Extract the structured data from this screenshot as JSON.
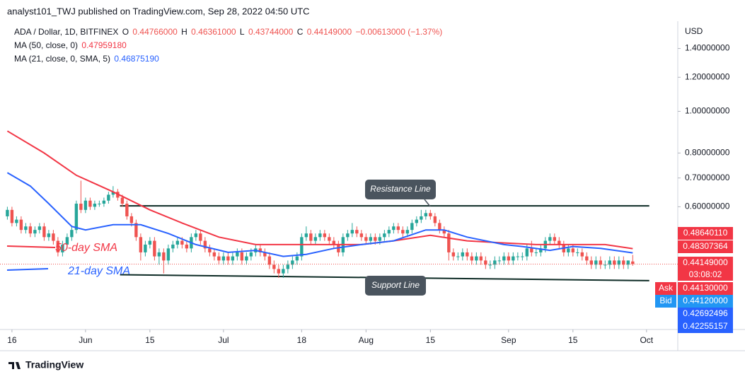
{
  "header": {
    "publisher": "analyst101_TWJ published on TradingView.com, Sep 28, 2022 04:50 UTC",
    "brand": "TradingView"
  },
  "chart_data": {
    "type": "candlestick",
    "symbol": "ADA / Dollar, 1D, BITFINEX",
    "ohlc_legend": [
      {
        "key": "O",
        "text": "0.44766000"
      },
      {
        "key": "H",
        "text": "0.46361000"
      },
      {
        "key": "L",
        "text": "0.43744000"
      },
      {
        "key": "C",
        "text": "0.44149000"
      }
    ],
    "change": "−0.00613000 (−1.37%)",
    "currency": "USD",
    "up_color": "#26a69a",
    "down_color": "#ef5350",
    "log_scale": true,
    "ylim": [
      0.311,
      1.62
    ],
    "yticks": [
      {
        "value": 1.4,
        "label": "1.40000000"
      },
      {
        "value": 1.2,
        "label": "1.20000000"
      },
      {
        "value": 1.0,
        "label": "1.00000000"
      },
      {
        "value": 0.8,
        "label": "0.80000000"
      },
      {
        "value": 0.7,
        "label": "0.70000000"
      },
      {
        "value": 0.6,
        "label": "0.60000000"
      }
    ],
    "xlim": [
      -1.6,
      145.8
    ],
    "xticks": [
      {
        "value": 1,
        "label": "16"
      },
      {
        "value": 17,
        "label": "Jun"
      },
      {
        "value": 31,
        "label": "15"
      },
      {
        "value": 47,
        "label": "Jul"
      },
      {
        "value": 64,
        "label": "18"
      },
      {
        "value": 78,
        "label": "Aug"
      },
      {
        "value": 92,
        "label": "15"
      },
      {
        "value": 109,
        "label": "Sep"
      },
      {
        "value": 123,
        "label": "15"
      },
      {
        "value": 139,
        "label": "Oct"
      }
    ],
    "candles": [
      [
        0.57,
        0.6,
        0.56,
        0.59
      ],
      [
        0.59,
        0.6,
        0.54,
        0.55
      ],
      [
        0.55,
        0.57,
        0.54,
        0.56
      ],
      [
        0.56,
        0.57,
        0.52,
        0.53
      ],
      [
        0.53,
        0.55,
        0.52,
        0.54
      ],
      [
        0.54,
        0.55,
        0.51,
        0.52
      ],
      [
        0.52,
        0.54,
        0.51,
        0.53
      ],
      [
        0.53,
        0.55,
        0.52,
        0.54
      ],
      [
        0.54,
        0.55,
        0.5,
        0.51
      ],
      [
        0.51,
        0.53,
        0.5,
        0.52
      ],
      [
        0.52,
        0.53,
        0.49,
        0.5
      ],
      [
        0.5,
        0.51,
        0.46,
        0.47
      ],
      [
        0.47,
        0.5,
        0.46,
        0.49
      ],
      [
        0.49,
        0.52,
        0.48,
        0.51
      ],
      [
        0.51,
        0.54,
        0.5,
        0.53
      ],
      [
        0.53,
        0.62,
        0.52,
        0.61
      ],
      [
        0.61,
        0.69,
        0.58,
        0.59
      ],
      [
        0.59,
        0.63,
        0.58,
        0.62
      ],
      [
        0.62,
        0.63,
        0.59,
        0.6
      ],
      [
        0.6,
        0.62,
        0.59,
        0.61
      ],
      [
        0.61,
        0.62,
        0.6,
        0.61
      ],
      [
        0.61,
        0.63,
        0.6,
        0.62
      ],
      [
        0.62,
        0.65,
        0.61,
        0.64
      ],
      [
        0.64,
        0.67,
        0.63,
        0.65
      ],
      [
        0.65,
        0.66,
        0.62,
        0.63
      ],
      [
        0.63,
        0.64,
        0.6,
        0.61
      ],
      [
        0.61,
        0.62,
        0.56,
        0.57
      ],
      [
        0.57,
        0.58,
        0.54,
        0.55
      ],
      [
        0.55,
        0.56,
        0.5,
        0.51
      ],
      [
        0.51,
        0.52,
        0.45,
        0.47
      ],
      [
        0.47,
        0.5,
        0.46,
        0.49
      ],
      [
        0.49,
        0.51,
        0.48,
        0.5
      ],
      [
        0.5,
        0.51,
        0.45,
        0.46
      ],
      [
        0.46,
        0.48,
        0.44,
        0.47
      ],
      [
        0.47,
        0.48,
        0.42,
        0.45
      ],
      [
        0.45,
        0.49,
        0.44,
        0.48
      ],
      [
        0.48,
        0.5,
        0.47,
        0.49
      ],
      [
        0.49,
        0.51,
        0.48,
        0.5
      ],
      [
        0.5,
        0.51,
        0.48,
        0.49
      ],
      [
        0.49,
        0.5,
        0.47,
        0.48
      ],
      [
        0.48,
        0.52,
        0.47,
        0.51
      ],
      [
        0.51,
        0.53,
        0.5,
        0.52
      ],
      [
        0.52,
        0.53,
        0.49,
        0.5
      ],
      [
        0.5,
        0.51,
        0.47,
        0.48
      ],
      [
        0.48,
        0.49,
        0.46,
        0.47
      ],
      [
        0.47,
        0.48,
        0.45,
        0.46
      ],
      [
        0.46,
        0.47,
        0.44,
        0.45
      ],
      [
        0.45,
        0.47,
        0.44,
        0.46
      ],
      [
        0.46,
        0.47,
        0.44,
        0.45
      ],
      [
        0.45,
        0.47,
        0.44,
        0.46
      ],
      [
        0.46,
        0.48,
        0.45,
        0.47
      ],
      [
        0.47,
        0.48,
        0.44,
        0.45
      ],
      [
        0.45,
        0.47,
        0.44,
        0.46
      ],
      [
        0.46,
        0.48,
        0.45,
        0.47
      ],
      [
        0.47,
        0.49,
        0.46,
        0.48
      ],
      [
        0.48,
        0.49,
        0.46,
        0.47
      ],
      [
        0.47,
        0.48,
        0.45,
        0.46
      ],
      [
        0.46,
        0.47,
        0.43,
        0.44
      ],
      [
        0.44,
        0.45,
        0.42,
        0.43
      ],
      [
        0.43,
        0.44,
        0.41,
        0.42
      ],
      [
        0.42,
        0.44,
        0.41,
        0.43
      ],
      [
        0.43,
        0.45,
        0.42,
        0.44
      ],
      [
        0.44,
        0.46,
        0.43,
        0.45
      ],
      [
        0.45,
        0.47,
        0.44,
        0.46
      ],
      [
        0.46,
        0.52,
        0.45,
        0.51
      ],
      [
        0.51,
        0.54,
        0.5,
        0.52
      ],
      [
        0.52,
        0.53,
        0.49,
        0.5
      ],
      [
        0.5,
        0.52,
        0.49,
        0.51
      ],
      [
        0.51,
        0.53,
        0.5,
        0.52
      ],
      [
        0.52,
        0.53,
        0.5,
        0.51
      ],
      [
        0.51,
        0.52,
        0.49,
        0.5
      ],
      [
        0.5,
        0.51,
        0.48,
        0.49
      ],
      [
        0.49,
        0.5,
        0.46,
        0.47
      ],
      [
        0.47,
        0.52,
        0.46,
        0.51
      ],
      [
        0.51,
        0.53,
        0.5,
        0.52
      ],
      [
        0.52,
        0.55,
        0.51,
        0.53
      ],
      [
        0.53,
        0.54,
        0.51,
        0.52
      ],
      [
        0.52,
        0.53,
        0.5,
        0.51
      ],
      [
        0.51,
        0.52,
        0.49,
        0.5
      ],
      [
        0.5,
        0.52,
        0.49,
        0.51
      ],
      [
        0.51,
        0.52,
        0.49,
        0.5
      ],
      [
        0.5,
        0.52,
        0.49,
        0.51
      ],
      [
        0.51,
        0.53,
        0.5,
        0.52
      ],
      [
        0.52,
        0.54,
        0.51,
        0.53
      ],
      [
        0.53,
        0.55,
        0.52,
        0.54
      ],
      [
        0.54,
        0.55,
        0.52,
        0.53
      ],
      [
        0.53,
        0.54,
        0.51,
        0.52
      ],
      [
        0.52,
        0.54,
        0.51,
        0.53
      ],
      [
        0.53,
        0.56,
        0.52,
        0.55
      ],
      [
        0.55,
        0.57,
        0.54,
        0.56
      ],
      [
        0.56,
        0.59,
        0.55,
        0.57
      ],
      [
        0.57,
        0.59,
        0.56,
        0.58
      ],
      [
        0.58,
        0.59,
        0.56,
        0.57
      ],
      [
        0.57,
        0.58,
        0.54,
        0.55
      ],
      [
        0.55,
        0.56,
        0.52,
        0.53
      ],
      [
        0.53,
        0.54,
        0.51,
        0.52
      ],
      [
        0.52,
        0.53,
        0.45,
        0.47
      ],
      [
        0.47,
        0.48,
        0.45,
        0.46
      ],
      [
        0.46,
        0.47,
        0.45,
        0.46
      ],
      [
        0.46,
        0.48,
        0.45,
        0.47
      ],
      [
        0.47,
        0.48,
        0.45,
        0.46
      ],
      [
        0.46,
        0.47,
        0.44,
        0.45
      ],
      [
        0.45,
        0.47,
        0.44,
        0.46
      ],
      [
        0.46,
        0.47,
        0.44,
        0.45
      ],
      [
        0.45,
        0.46,
        0.43,
        0.44
      ],
      [
        0.44,
        0.45,
        0.43,
        0.44
      ],
      [
        0.44,
        0.46,
        0.43,
        0.45
      ],
      [
        0.45,
        0.46,
        0.44,
        0.45
      ],
      [
        0.45,
        0.47,
        0.44,
        0.46
      ],
      [
        0.46,
        0.47,
        0.44,
        0.45
      ],
      [
        0.45,
        0.47,
        0.44,
        0.46
      ],
      [
        0.46,
        0.47,
        0.45,
        0.46
      ],
      [
        0.46,
        0.47,
        0.45,
        0.46
      ],
      [
        0.46,
        0.49,
        0.45,
        0.48
      ],
      [
        0.48,
        0.5,
        0.46,
        0.47
      ],
      [
        0.47,
        0.48,
        0.46,
        0.47
      ],
      [
        0.47,
        0.49,
        0.46,
        0.48
      ],
      [
        0.48,
        0.51,
        0.47,
        0.5
      ],
      [
        0.5,
        0.52,
        0.49,
        0.51
      ],
      [
        0.51,
        0.52,
        0.49,
        0.5
      ],
      [
        0.5,
        0.51,
        0.48,
        0.49
      ],
      [
        0.49,
        0.5,
        0.46,
        0.47
      ],
      [
        0.47,
        0.49,
        0.46,
        0.48
      ],
      [
        0.48,
        0.49,
        0.46,
        0.47
      ],
      [
        0.47,
        0.48,
        0.46,
        0.47
      ],
      [
        0.47,
        0.48,
        0.45,
        0.46
      ],
      [
        0.46,
        0.47,
        0.44,
        0.45
      ],
      [
        0.45,
        0.46,
        0.43,
        0.44
      ],
      [
        0.44,
        0.46,
        0.43,
        0.45
      ],
      [
        0.45,
        0.46,
        0.43,
        0.44
      ],
      [
        0.44,
        0.45,
        0.43,
        0.44
      ],
      [
        0.44,
        0.46,
        0.43,
        0.45
      ],
      [
        0.45,
        0.46,
        0.43,
        0.44
      ],
      [
        0.44,
        0.46,
        0.43,
        0.45
      ],
      [
        0.45,
        0.46,
        0.43,
        0.44
      ],
      [
        0.44,
        0.45,
        0.43,
        0.45
      ],
      [
        0.44766,
        0.46361,
        0.43744,
        0.44149
      ]
    ],
    "series": [
      {
        "name": "MA (50, close, 0)",
        "value_label": "0.47959180",
        "color": "#f23645",
        "x": [
          0,
          8,
          15,
          23,
          31,
          38,
          46,
          54,
          61,
          69,
          77,
          84,
          92,
          100,
          107,
          115,
          123,
          130,
          136
        ],
        "values": [
          0.9,
          0.8,
          0.71,
          0.65,
          0.59,
          0.55,
          0.51,
          0.49,
          0.49,
          0.49,
          0.49,
          0.5,
          0.515,
          0.5,
          0.495,
          0.49,
          0.49,
          0.49,
          0.4796
        ]
      },
      {
        "name": "MA (21, close, 0, SMA, 5)",
        "value_label": "0.46875190",
        "color": "#2962ff",
        "x": [
          0,
          5,
          9,
          14,
          17,
          23,
          29,
          35,
          41,
          48,
          54,
          60,
          65,
          71,
          77,
          84,
          91,
          95,
          100,
          108,
          112,
          118,
          123,
          129,
          136
        ],
        "values": [
          0.72,
          0.67,
          0.61,
          0.54,
          0.53,
          0.545,
          0.545,
          0.52,
          0.49,
          0.47,
          0.475,
          0.46,
          0.465,
          0.48,
          0.49,
          0.5,
          0.53,
          0.53,
          0.51,
          0.49,
          0.485,
          0.475,
          0.485,
          0.48,
          0.4688
        ]
      }
    ],
    "last_price": 0.44149,
    "trendlines": [
      {
        "x": [
          24.5,
          139.6
        ],
        "y": [
          0.603,
          0.603
        ]
      },
      {
        "x": [
          24.5,
          139.6
        ],
        "y": [
          0.417,
          0.404
        ]
      }
    ],
    "annotations": [
      "Resistance Line",
      "Support Line",
      "50-day SMA",
      "21-day SMA"
    ],
    "price_badges": [
      {
        "text": "0.48640110",
        "color": "#f23645"
      },
      {
        "text": "0.48307364",
        "color": "#f23645"
      },
      {
        "text": "0.44149000",
        "sub": "03:08:02",
        "color": "#f23645"
      },
      {
        "tag": "Ask",
        "text": "0.44130000",
        "color": "#f23645"
      },
      {
        "tag": "Bid",
        "text": "0.44120000",
        "color": "#2196f3"
      },
      {
        "text": "0.42692496",
        "color": "#2962ff"
      },
      {
        "text": "0.42255157",
        "color": "#2962ff"
      }
    ]
  }
}
